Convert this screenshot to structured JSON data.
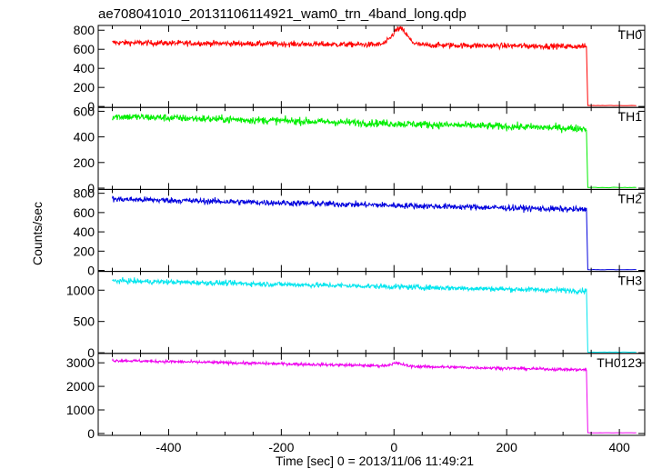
{
  "chart_data": {
    "type": "line",
    "title": "ae708041010_20131106114921_wam0_trn_4band_long.qdp",
    "xlabel": "Time [sec] 0 = 2013/11/06 11:49:21",
    "ylabel": "Counts/sec",
    "xlim": [
      -525,
      445
    ],
    "xticks": [
      -400,
      -200,
      0,
      200,
      400
    ],
    "data_range": [
      -500,
      430
    ],
    "drop_time": 342,
    "panels": [
      {
        "name": "TH0",
        "color": "#ff0000",
        "ylim": [
          -10,
          850
        ],
        "yticks": [
          0,
          200,
          400,
          600,
          800
        ],
        "base_start": 670,
        "base_end": 630,
        "noise": 28,
        "flare": {
          "t0": 10,
          "amp": 170,
          "width": 18
        },
        "after_level": 10
      },
      {
        "name": "TH1",
        "color": "#00ee00",
        "ylim": [
          -10,
          630
        ],
        "yticks": [
          0,
          200,
          400,
          600
        ],
        "base_start": 560,
        "base_end": 465,
        "noise": 28,
        "flare": null,
        "after_level": 5
      },
      {
        "name": "TH2",
        "color": "#0000dd",
        "ylim": [
          -10,
          840
        ],
        "yticks": [
          0,
          200,
          400,
          600,
          800
        ],
        "base_start": 740,
        "base_end": 630,
        "noise": 30,
        "flare": null,
        "after_level": 8
      },
      {
        "name": "TH3",
        "color": "#00e5ee",
        "ylim": [
          -10,
          1300
        ],
        "yticks": [
          0,
          500,
          1000
        ],
        "base_start": 1150,
        "base_end": 990,
        "noise": 40,
        "flare": null,
        "after_level": 10
      },
      {
        "name": "TH0123",
        "color": "#ee00ee",
        "ylim": [
          -80,
          3400
        ],
        "yticks": [
          0,
          1000,
          2000,
          3000
        ],
        "base_start": 3100,
        "base_end": 2700,
        "noise": 60,
        "flare": {
          "t0": 5,
          "amp": 120,
          "width": 15
        },
        "after_level": 30
      }
    ]
  }
}
